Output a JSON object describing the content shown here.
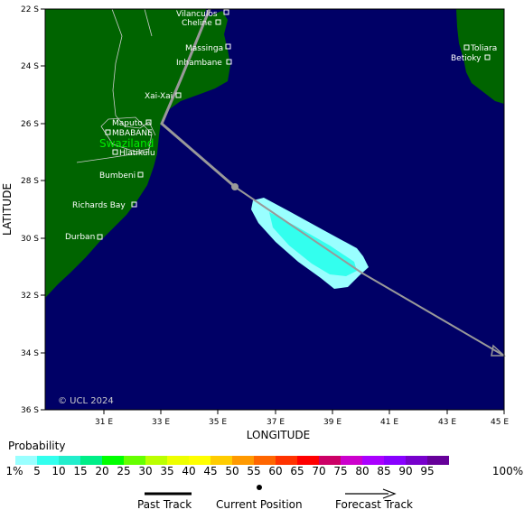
{
  "map": {
    "latitude_label": "LATITUDE",
    "longitude_label": "LONGITUDE",
    "lat_ticks": [
      "22 S",
      "24 S",
      "26 S",
      "28 S",
      "30 S",
      "32 S",
      "34 S",
      "36 S"
    ],
    "lon_ticks": [
      "31 E",
      "33 E",
      "35 E",
      "37 E",
      "39 E",
      "41 E",
      "43 E",
      "45 E"
    ],
    "copyright": "© UCL 2024",
    "region_label": "Swaziland",
    "places": [
      {
        "name": "Vilanculos"
      },
      {
        "name": "Cheline"
      },
      {
        "name": "Massinga"
      },
      {
        "name": "Inhambane"
      },
      {
        "name": "Xai-Xai"
      },
      {
        "name": "Maputo"
      },
      {
        "name": "MBABANE"
      },
      {
        "name": "Hlatikulu"
      },
      {
        "name": "Bumbeni"
      },
      {
        "name": "Richards Bay"
      },
      {
        "name": "Durban"
      },
      {
        "name": "Toliara"
      },
      {
        "name": "Betioky"
      }
    ],
    "colors": {
      "ocean": "#000066",
      "land": "#006400",
      "track": "#999999",
      "border": "#c8c8c8"
    }
  },
  "legend": {
    "title": "Probability",
    "labels": [
      "1%",
      "5",
      "10",
      "15",
      "20",
      "25",
      "30",
      "35",
      "40",
      "45",
      "50",
      "55",
      "60",
      "65",
      "70",
      "75",
      "80",
      "85",
      "90",
      "95",
      "100%"
    ],
    "colors": [
      "#99ffff",
      "#33ffee",
      "#22eecc",
      "#00ee88",
      "#00ff00",
      "#66ff00",
      "#bbff00",
      "#eeff00",
      "#ffff00",
      "#ffcc00",
      "#ff9900",
      "#ff6600",
      "#ff3300",
      "#ff0000",
      "#cc0066",
      "#cc00cc",
      "#aa00ff",
      "#8800ff",
      "#7700cc",
      "#660099"
    ]
  },
  "key": {
    "past_track": "Past Track",
    "current_position": "Current Position",
    "forecast_track": "Forecast Track"
  }
}
